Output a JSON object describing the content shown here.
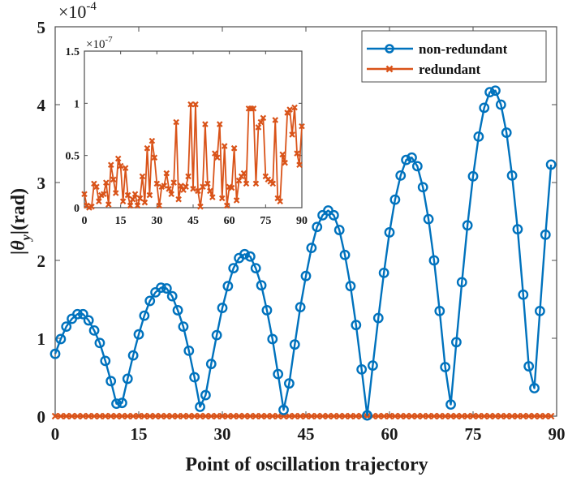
{
  "chart_data": [
    {
      "type": "line",
      "role": "main",
      "title": "",
      "xlabel": "Point of oscillation trajectory",
      "ylabel": "|θy|(rad)",
      "ylabel_parts": {
        "prefix": "|",
        "symbol": "θ",
        "subscript": "y",
        "suffix": "|(rad)"
      },
      "y_exponent_label": {
        "base": "×10",
        "exp": "-4"
      },
      "xlim": [
        0,
        90
      ],
      "ylim": [
        0,
        5
      ],
      "xticks": [
        0,
        15,
        30,
        45,
        60,
        75,
        90
      ],
      "yticks": [
        0,
        1,
        2,
        3,
        4,
        5
      ],
      "xtick_labels": [
        "0",
        "15",
        "30",
        "45",
        "60",
        "75",
        "90"
      ],
      "ytick_labels": [
        "0",
        "1",
        "2",
        "3",
        "4",
        "5"
      ],
      "grid": false,
      "legend": {
        "placement": "top-right",
        "entries": [
          "non-redundant",
          "redundant"
        ]
      },
      "series": [
        {
          "name": "non-redundant",
          "color": "#0072BD",
          "marker": "circle",
          "values": [
            0.8,
            0.99,
            1.15,
            1.25,
            1.31,
            1.31,
            1.23,
            1.1,
            0.94,
            0.71,
            0.45,
            0.16,
            0.17,
            0.48,
            0.78,
            1.05,
            1.29,
            1.48,
            1.59,
            1.65,
            1.64,
            1.54,
            1.36,
            1.15,
            0.84,
            0.5,
            0.12,
            0.27,
            0.67,
            1.04,
            1.39,
            1.67,
            1.9,
            2.03,
            2.08,
            2.05,
            1.9,
            1.68,
            1.36,
            0.99,
            0.54,
            0.08,
            0.42,
            0.92,
            1.4,
            1.8,
            2.16,
            2.43,
            2.58,
            2.64,
            2.58,
            2.39,
            2.07,
            1.67,
            1.17,
            0.6,
            0.01,
            0.65,
            1.26,
            1.84,
            2.36,
            2.78,
            3.09,
            3.29,
            3.32,
            3.21,
            2.94,
            2.53,
            2.0,
            1.35,
            0.63,
            0.15,
            0.95,
            1.72,
            2.45,
            3.08,
            3.59,
            3.96,
            4.16,
            4.18,
            4.0,
            3.64,
            3.09,
            2.4,
            1.56,
            0.64,
            0.36,
            1.35,
            2.33,
            3.23
          ]
        },
        {
          "name": "redundant",
          "color": "#D95319",
          "marker": "x",
          "values": "all zero (91 points, 0..90) at main-plot scale"
        }
      ]
    },
    {
      "type": "line",
      "role": "inset",
      "title": "",
      "xlabel": "",
      "ylabel": "",
      "y_exponent_label": {
        "base": "×10",
        "exp": "-7"
      },
      "xlim": [
        0,
        90
      ],
      "ylim": [
        0,
        1.5
      ],
      "xticks": [
        0,
        15,
        30,
        45,
        60,
        75,
        90
      ],
      "yticks": [
        0,
        0.5,
        1,
        1.5
      ],
      "xtick_labels": [
        "0",
        "15",
        "30",
        "45",
        "60",
        "75",
        "90"
      ],
      "ytick_labels": [
        "0",
        "0.5",
        "1",
        "1.5"
      ],
      "grid": false,
      "series": [
        {
          "name": "redundant",
          "color": "#D95319",
          "marker": "x",
          "values": [
            0.13,
            0.02,
            0.0,
            0.01,
            0.23,
            0.2,
            0.06,
            0.12,
            0.13,
            0.24,
            0.03,
            0.41,
            0.27,
            0.14,
            0.47,
            0.4,
            0.06,
            0.38,
            0.12,
            0.02,
            0.08,
            0.13,
            0.02,
            0.09,
            0.3,
            0.05,
            0.57,
            0.12,
            0.64,
            0.48,
            0.23,
            0.02,
            0.2,
            0.21,
            0.33,
            0.18,
            0.13,
            0.24,
            0.82,
            0.08,
            0.21,
            0.17,
            0.2,
            0.3,
            0.99,
            0.18,
            0.99,
            0.16,
            0.01,
            0.2,
            0.8,
            0.23,
            0.16,
            0.1,
            0.52,
            0.48,
            0.8,
            0.09,
            0.59,
            0.02,
            0.2,
            0.19,
            0.57,
            0.07,
            0.26,
            0.3,
            0.33,
            0.23,
            0.95,
            0.95,
            0.95,
            0.23,
            0.77,
            0.82,
            0.86,
            0.3,
            0.27,
            0.25,
            0.23,
            0.84,
            0.09,
            0.06,
            0.51,
            0.43,
            0.91,
            0.94,
            0.7,
            0.96,
            0.52,
            0.41,
            0.78
          ]
        }
      ]
    }
  ]
}
